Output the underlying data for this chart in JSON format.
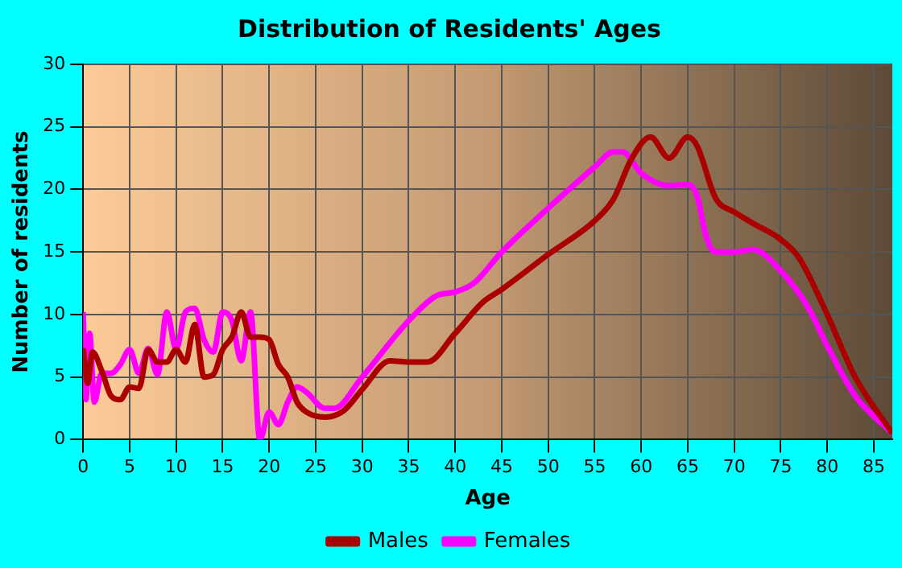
{
  "chart_data": {
    "type": "line",
    "title": "Distribution of Residents' Ages",
    "xlabel": "Age",
    "ylabel": "Number of residents",
    "xlim": [
      0,
      87
    ],
    "xticks": [
      0,
      5,
      10,
      15,
      20,
      25,
      30,
      35,
      40,
      45,
      50,
      55,
      60,
      65,
      70,
      75,
      80,
      85
    ],
    "ylim": [
      0,
      30
    ],
    "yticks": [
      0,
      5,
      10,
      15,
      20,
      25,
      30
    ],
    "grid": true,
    "legend": "bottom",
    "marker": "none",
    "line_style": "solid",
    "series": [
      {
        "name": "Males",
        "color": "#aa0000",
        "x": [
          0,
          0.5,
          1,
          2,
          3,
          4,
          5,
          6,
          7,
          8,
          9,
          10,
          11,
          12,
          13,
          14,
          15,
          16,
          17,
          18,
          19,
          20,
          21,
          22,
          23,
          24,
          26,
          28,
          30,
          33,
          35,
          37,
          40,
          43,
          45,
          50,
          55,
          57,
          59,
          61,
          63,
          65,
          66,
          68,
          70,
          72,
          75,
          77,
          80,
          83,
          87
        ],
        "values": [
          7.3,
          4.5,
          7,
          5.5,
          3.5,
          3.2,
          4.2,
          4.1,
          7.2,
          6.2,
          6.2,
          7.2,
          6.2,
          9.2,
          5,
          5.2,
          7.2,
          8.2,
          10.2,
          8.2,
          8.2,
          8,
          6,
          5,
          3,
          2.2,
          1.8,
          2.3,
          4,
          6.3,
          6.2,
          6.2,
          8.5,
          11,
          12,
          14.8,
          17.5,
          19.2,
          22.5,
          24.2,
          22.5,
          24.2,
          23.5,
          19.3,
          18.2,
          17.3,
          16,
          14.5,
          10,
          5,
          0.5
        ]
      },
      {
        "name": "Females",
        "color": "#ff00ff",
        "x": [
          0,
          0.3,
          0.7,
          1.2,
          2,
          3,
          4,
          5,
          6,
          7,
          8,
          9,
          10,
          11,
          12,
          13,
          14,
          15,
          16,
          17,
          18,
          19,
          20,
          21,
          22,
          23,
          24,
          26,
          27,
          30,
          35,
          38,
          40,
          42,
          45,
          50,
          55,
          57,
          58,
          60,
          63,
          65,
          66,
          67,
          68,
          70,
          72,
          75,
          78,
          80,
          83,
          87
        ],
        "values": [
          10.2,
          3.2,
          8.5,
          3,
          5.3,
          5.3,
          6,
          7.2,
          5.3,
          7.3,
          5.2,
          10.2,
          7.2,
          10.2,
          10.5,
          8,
          7,
          10.2,
          9.5,
          6.3,
          10.2,
          0,
          2.2,
          1.2,
          3,
          4.2,
          3.8,
          2.5,
          2.5,
          5,
          9.5,
          11.5,
          11.8,
          12.5,
          15,
          18.5,
          21.8,
          23,
          23,
          21.3,
          20.3,
          20.4,
          19.5,
          16.2,
          15,
          15,
          15.2,
          13.5,
          10.5,
          7.5,
          3.5,
          0.5
        ]
      }
    ]
  }
}
